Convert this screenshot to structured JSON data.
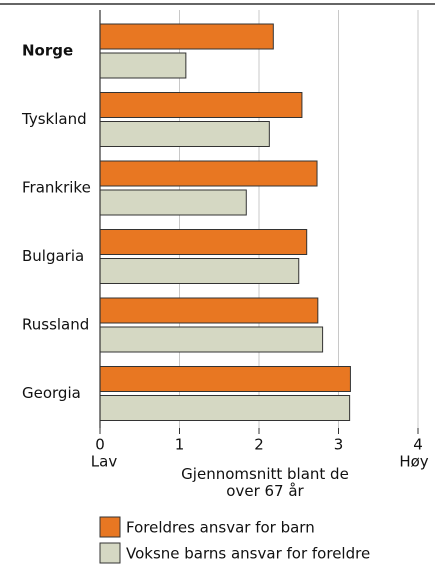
{
  "chart_data": {
    "type": "barh",
    "categories": [
      "Norge",
      "Tyskland",
      "Frankrike",
      "Bulgaria",
      "Russland",
      "Georgia"
    ],
    "highlight": "Norge",
    "series": [
      {
        "name": "Foreldres ansvar for barn",
        "color": "#e87722",
        "values": [
          2.18,
          2.54,
          2.73,
          2.6,
          2.74,
          3.15
        ]
      },
      {
        "name": "Voksne barns ansvar for foreldre",
        "color": "#d5d8c3",
        "values": [
          1.08,
          2.13,
          1.84,
          2.5,
          2.8,
          3.14
        ]
      }
    ],
    "xlim": [
      0,
      4
    ],
    "xticks": [
      0,
      1,
      2,
      3,
      4
    ],
    "grid": true,
    "xlabel": "Gjennomsnitt blant de over 67 år",
    "annotations": [
      "Lav",
      "Høy"
    ]
  }
}
